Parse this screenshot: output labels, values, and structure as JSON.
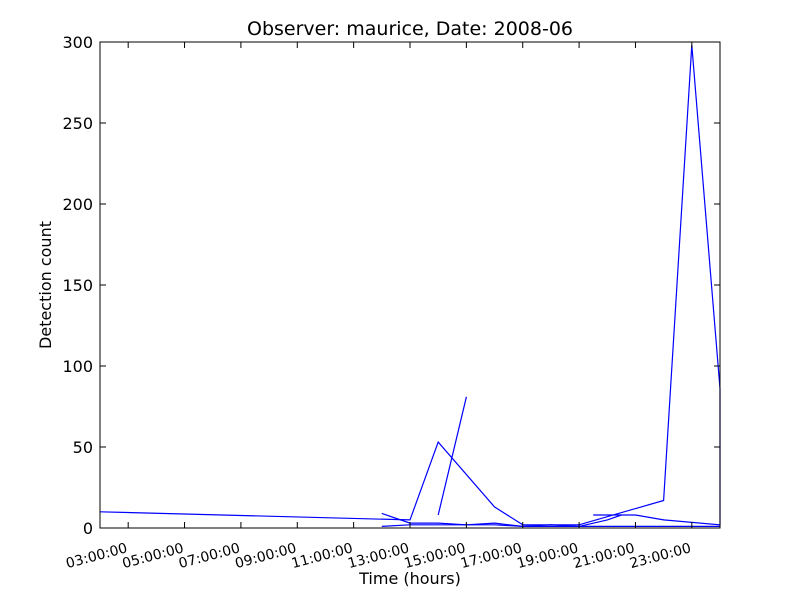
{
  "chart_data": {
    "type": "line",
    "title": "Observer: maurice, Date: 2008-06",
    "xlabel": "Time (hours)",
    "ylabel": "Detection count",
    "xlim": [
      "02:00",
      "24:00"
    ],
    "ylim": [
      0,
      300
    ],
    "yticks": [
      0,
      50,
      100,
      150,
      200,
      250,
      300
    ],
    "xticks": [
      "03:00:00",
      "05:00:00",
      "07:00:00",
      "09:00:00",
      "11:00:00",
      "13:00:00",
      "15:00:00",
      "17:00:00",
      "19:00:00",
      "21:00:00",
      "23:00:00"
    ],
    "grid": false,
    "color": "#0000ff",
    "series": [
      {
        "points": [
          [
            "02:00",
            10
          ],
          [
            "13:00",
            5
          ],
          [
            "14:00",
            53
          ],
          [
            "16:00",
            13
          ],
          [
            "17:00",
            2
          ],
          [
            "19:00",
            2
          ],
          [
            "22:00",
            17
          ],
          [
            "23:00",
            298
          ],
          [
            "24:00",
            86
          ],
          [
            "24:00",
            2
          ],
          [
            "22:00",
            5
          ],
          [
            "21:00",
            8
          ],
          [
            "19:30",
            8
          ]
        ]
      },
      {
        "points": [
          [
            "15:00",
            81
          ],
          [
            "14:00",
            8
          ]
        ]
      },
      {
        "points": [
          [
            "12:00",
            9
          ],
          [
            "13:00",
            3
          ],
          [
            "14:00",
            3
          ],
          [
            "15:00",
            2
          ],
          [
            "16:00",
            3
          ],
          [
            "17:00",
            1
          ],
          [
            "18:00",
            1
          ],
          [
            "20:00",
            1
          ],
          [
            "22:00",
            1
          ],
          [
            "24:00",
            1
          ]
        ]
      },
      {
        "points": [
          [
            "12:00",
            1
          ],
          [
            "13:00",
            2
          ],
          [
            "14:00",
            2
          ],
          [
            "16:00",
            2
          ],
          [
            "17:00",
            1
          ],
          [
            "18:00",
            2
          ],
          [
            "19:00",
            1
          ],
          [
            "20:00",
            5
          ],
          [
            "20:30",
            8
          ]
        ]
      }
    ]
  }
}
